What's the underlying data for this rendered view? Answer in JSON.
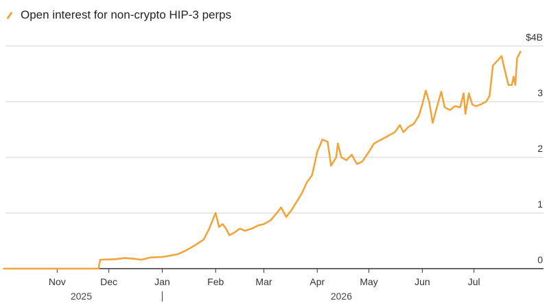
{
  "legend": {
    "label": "Open interest for non-crypto HIP-3 perps"
  },
  "colors": {
    "series": "#f0a53b",
    "grid": "#d0d0d0",
    "axis": "#333333"
  },
  "chart_data": {
    "type": "line",
    "title": "",
    "xlabel": "",
    "ylabel": "",
    "ylim": [
      0,
      4
    ],
    "y_ticks": [
      {
        "value": 0,
        "label": "0"
      },
      {
        "value": 1,
        "label": "1"
      },
      {
        "value": 2,
        "label": "2"
      },
      {
        "value": 3,
        "label": "3"
      },
      {
        "value": 4,
        "label": "$4B"
      }
    ],
    "x_ticks": [
      {
        "date": "2025-11-01",
        "label": "Nov"
      },
      {
        "date": "2025-12-01",
        "label": "Dec"
      },
      {
        "date": "2026-01-01",
        "label": "Jan"
      },
      {
        "date": "2026-02-01",
        "label": "Feb"
      },
      {
        "date": "2026-03-01",
        "label": "Mar"
      },
      {
        "date": "2026-04-01",
        "label": "Apr"
      },
      {
        "date": "2026-05-01",
        "label": "May"
      },
      {
        "date": "2026-06-01",
        "label": "Jun"
      },
      {
        "date": "2026-07-01",
        "label": "Jul"
      }
    ],
    "year_labels": [
      {
        "label": "2025",
        "date": "2025-11-15"
      },
      {
        "label": "2026",
        "date": "2026-04-15"
      }
    ],
    "year_divider": "2026-01-01",
    "grid": true,
    "series": [
      {
        "name": "Open interest for non-crypto HIP-3 perps",
        "points": [
          [
            "2025-10-01",
            0.0
          ],
          [
            "2025-11-01",
            0.0
          ],
          [
            "2025-11-25",
            0.0
          ],
          [
            "2025-11-26",
            0.16
          ],
          [
            "2025-12-05",
            0.17
          ],
          [
            "2025-12-10",
            0.19
          ],
          [
            "2025-12-15",
            0.18
          ],
          [
            "2025-12-20",
            0.16
          ],
          [
            "2025-12-25",
            0.2
          ],
          [
            "2026-01-01",
            0.21
          ],
          [
            "2026-01-05",
            0.23
          ],
          [
            "2026-01-10",
            0.26
          ],
          [
            "2026-01-15",
            0.33
          ],
          [
            "2026-01-20",
            0.42
          ],
          [
            "2026-01-25",
            0.52
          ],
          [
            "2026-01-28",
            0.7
          ],
          [
            "2026-01-30",
            0.85
          ],
          [
            "2026-02-01",
            1.0
          ],
          [
            "2026-02-03",
            0.75
          ],
          [
            "2026-02-05",
            0.8
          ],
          [
            "2026-02-07",
            0.72
          ],
          [
            "2026-02-09",
            0.6
          ],
          [
            "2026-02-12",
            0.65
          ],
          [
            "2026-02-15",
            0.72
          ],
          [
            "2026-02-18",
            0.68
          ],
          [
            "2026-02-22",
            0.72
          ],
          [
            "2026-02-26",
            0.78
          ],
          [
            "2026-03-01",
            0.8
          ],
          [
            "2026-03-05",
            0.87
          ],
          [
            "2026-03-09",
            1.02
          ],
          [
            "2026-03-11",
            1.1
          ],
          [
            "2026-03-14",
            0.93
          ],
          [
            "2026-03-17",
            1.05
          ],
          [
            "2026-03-20",
            1.2
          ],
          [
            "2026-03-23",
            1.35
          ],
          [
            "2026-03-26",
            1.55
          ],
          [
            "2026-03-29",
            1.68
          ],
          [
            "2026-04-01",
            2.1
          ],
          [
            "2026-04-04",
            2.32
          ],
          [
            "2026-04-07",
            2.28
          ],
          [
            "2026-04-09",
            1.85
          ],
          [
            "2026-04-12",
            2.0
          ],
          [
            "2026-04-13",
            2.25
          ],
          [
            "2026-04-15",
            2.0
          ],
          [
            "2026-04-18",
            1.95
          ],
          [
            "2026-04-21",
            2.05
          ],
          [
            "2026-04-24",
            1.88
          ],
          [
            "2026-04-27",
            1.92
          ],
          [
            "2026-05-01",
            2.1
          ],
          [
            "2026-05-04",
            2.25
          ],
          [
            "2026-05-07",
            2.3
          ],
          [
            "2026-05-10",
            2.35
          ],
          [
            "2026-05-13",
            2.4
          ],
          [
            "2026-05-16",
            2.45
          ],
          [
            "2026-05-19",
            2.58
          ],
          [
            "2026-05-21",
            2.45
          ],
          [
            "2026-05-24",
            2.55
          ],
          [
            "2026-05-27",
            2.6
          ],
          [
            "2026-05-30",
            2.75
          ],
          [
            "2026-06-01",
            2.95
          ],
          [
            "2026-06-03",
            3.2
          ],
          [
            "2026-06-05",
            3.0
          ],
          [
            "2026-06-07",
            2.62
          ],
          [
            "2026-06-09",
            2.85
          ],
          [
            "2026-06-12",
            3.18
          ],
          [
            "2026-06-14",
            2.9
          ],
          [
            "2026-06-17",
            2.85
          ],
          [
            "2026-06-20",
            2.92
          ],
          [
            "2026-06-23",
            2.9
          ],
          [
            "2026-06-25",
            3.15
          ],
          [
            "2026-06-26",
            2.78
          ],
          [
            "2026-06-28",
            3.15
          ],
          [
            "2026-06-30",
            2.95
          ],
          [
            "2026-07-02",
            2.92
          ],
          [
            "2026-07-05",
            2.95
          ],
          [
            "2026-07-08",
            3.0
          ],
          [
            "2026-07-10",
            3.1
          ],
          [
            "2026-07-12",
            3.65
          ],
          [
            "2026-07-15",
            3.75
          ],
          [
            "2026-07-17",
            3.82
          ],
          [
            "2026-07-19",
            3.55
          ],
          [
            "2026-07-21",
            3.3
          ],
          [
            "2026-07-23",
            3.3
          ],
          [
            "2026-07-24",
            3.45
          ],
          [
            "2026-07-25",
            3.3
          ],
          [
            "2026-07-26",
            3.78
          ],
          [
            "2026-07-28",
            3.9
          ]
        ]
      }
    ]
  }
}
